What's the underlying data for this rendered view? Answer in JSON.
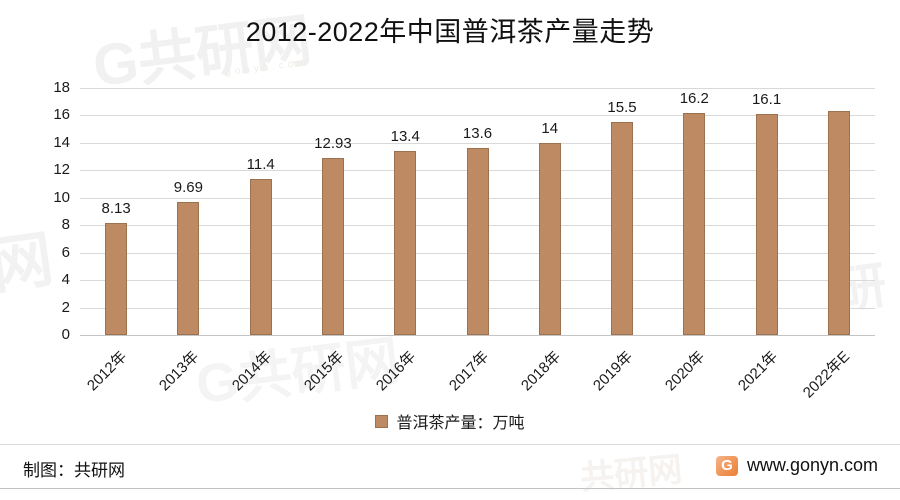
{
  "title": "2012-2022年中国普洱茶产量走势",
  "chart_data": {
    "type": "bar",
    "title": "2012-2022年中国普洱茶产量走势",
    "categories": [
      "2012年",
      "2013年",
      "2014年",
      "2015年",
      "2016年",
      "2017年",
      "2018年",
      "2019年",
      "2020年",
      "2021年",
      "2022年E"
    ],
    "values": [
      8.13,
      9.69,
      11.4,
      12.93,
      13.4,
      13.6,
      14,
      15.5,
      16.2,
      16.1,
      16.3
    ],
    "value_labels": [
      "8.13",
      "9.69",
      "11.4",
      "12.93",
      "13.4",
      "13.6",
      "14",
      "15.5",
      "16.2",
      "16.1",
      ""
    ],
    "xlabel": "",
    "ylabel": "",
    "ylim": [
      0,
      18
    ],
    "yticks": [
      0,
      2,
      4,
      6,
      8,
      10,
      12,
      14,
      16,
      18
    ],
    "grid": true,
    "legend": {
      "label": "普洱茶产量：万吨",
      "position": "bottom"
    },
    "bar_color": "#BE8A63",
    "bar_border_color": "#9C714E"
  },
  "footer": {
    "credit": "制图：共研网",
    "site": "www.gonyn.com",
    "logo_glyph": "G"
  },
  "watermarks": {
    "top_left": "G共研网",
    "top_left_sub": "gonyn.com",
    "left_edge": "网",
    "bottom_center": "G共研网",
    "right_middle": "研",
    "footer_ghost": "共研网"
  },
  "colors": {
    "bar": "#BE8A63",
    "bar_border": "#9C714E",
    "gridline": "#d9d9d9",
    "text": "#1a1a1a",
    "logo_orange": "#ec7f35"
  }
}
